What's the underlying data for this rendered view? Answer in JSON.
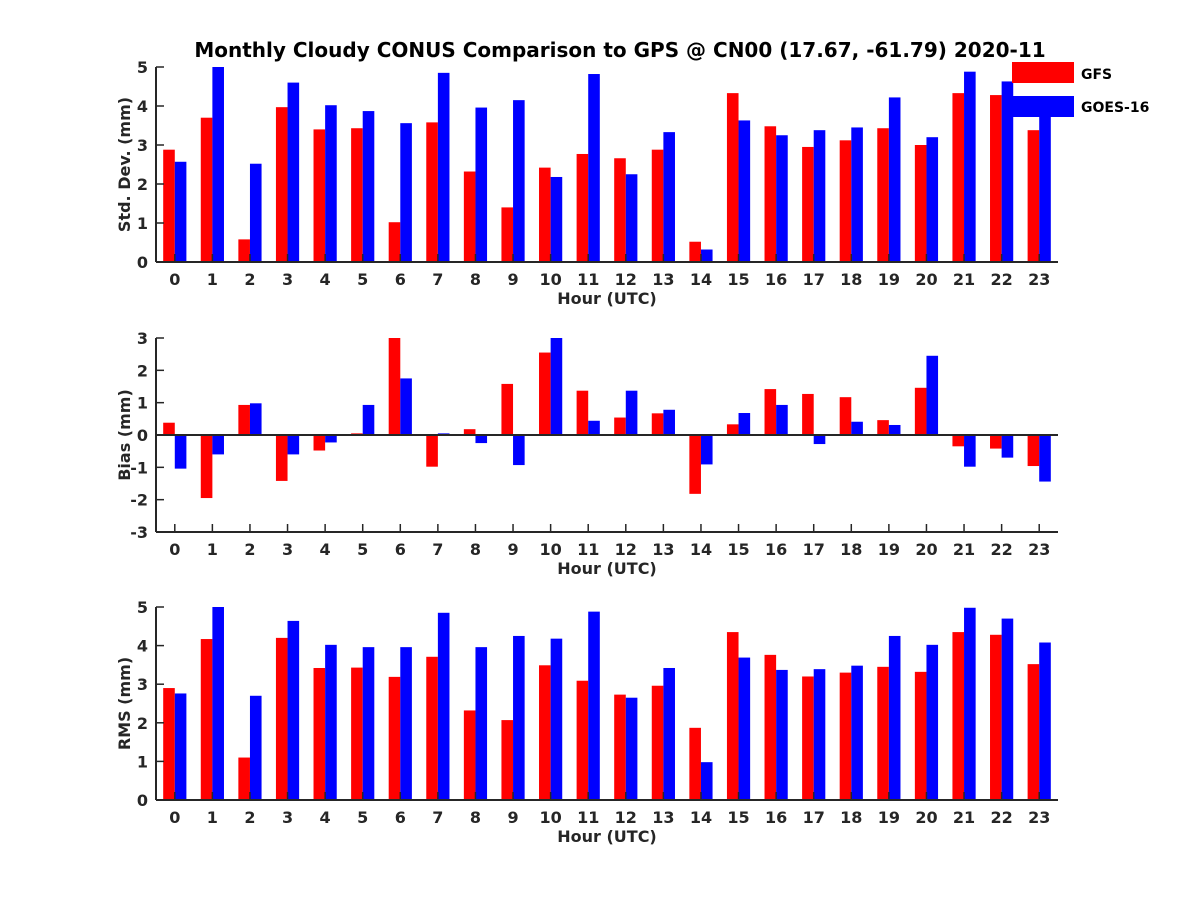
{
  "chart_data": {
    "type": "bar",
    "title": "Monthly Cloudy CONUS Comparison to GPS @ CN00 (17.67, -61.79) 2020-11",
    "categories": [
      "0",
      "1",
      "2",
      "3",
      "4",
      "5",
      "6",
      "7",
      "8",
      "9",
      "10",
      "11",
      "12",
      "13",
      "14",
      "15",
      "16",
      "17",
      "18",
      "19",
      "20",
      "21",
      "22",
      "23"
    ],
    "colors": {
      "GFS": "#ff0000",
      "GOES-16": "#0000ff"
    },
    "legend": {
      "position": "top-right",
      "entries": [
        "GFS",
        "GOES-16"
      ]
    },
    "panels": [
      {
        "ylabel": "Std. Dev. (mm)",
        "xlabel": "Hour (UTC)",
        "ylim": [
          0,
          5
        ],
        "yticks": [
          "0",
          "1",
          "2",
          "3",
          "4",
          "5"
        ],
        "series": [
          {
            "name": "GFS",
            "values": [
              2.88,
              3.7,
              0.58,
              3.97,
              3.4,
              3.43,
              1.02,
              3.58,
              2.32,
              1.4,
              2.42,
              2.77,
              2.66,
              2.88,
              0.52,
              4.33,
              3.48,
              2.95,
              3.12,
              3.43,
              3.0,
              4.33,
              4.28,
              3.38
            ]
          },
          {
            "name": "GOES-16",
            "values": [
              2.57,
              5.0,
              2.52,
              4.6,
              4.02,
              3.87,
              3.56,
              4.85,
              3.96,
              4.15,
              2.18,
              4.82,
              2.25,
              3.33,
              0.32,
              3.63,
              3.25,
              3.38,
              3.45,
              4.22,
              3.2,
              4.88,
              4.63,
              3.85
            ]
          }
        ]
      },
      {
        "ylabel": "Bias (mm)",
        "xlabel": "Hour (UTC)",
        "ylim": [
          -3,
          3
        ],
        "yticks": [
          "-3",
          "-2",
          "-1",
          "0",
          "1",
          "2",
          "3"
        ],
        "series": [
          {
            "name": "GFS",
            "values": [
              0.38,
              -1.95,
              0.93,
              -1.42,
              -0.48,
              0.05,
              3.0,
              -0.98,
              0.18,
              1.58,
              2.55,
              1.37,
              0.54,
              0.67,
              -1.82,
              0.33,
              1.42,
              1.27,
              1.17,
              0.46,
              1.46,
              -0.35,
              -0.42,
              -0.96
            ]
          },
          {
            "name": "GOES-16",
            "values": [
              -1.04,
              -0.6,
              0.98,
              -0.6,
              -0.23,
              0.93,
              1.75,
              0.05,
              -0.25,
              -0.93,
              3.0,
              0.44,
              1.37,
              0.78,
              -0.91,
              0.68,
              0.93,
              -0.28,
              0.41,
              0.31,
              2.45,
              -0.98,
              -0.7,
              -1.44
            ]
          }
        ]
      },
      {
        "ylabel": "RMS (mm)",
        "xlabel": "Hour (UTC)",
        "ylim": [
          0,
          5
        ],
        "yticks": [
          "0",
          "1",
          "2",
          "3",
          "4",
          "5"
        ],
        "series": [
          {
            "name": "GFS",
            "values": [
              2.9,
              4.17,
              1.1,
              4.2,
              3.42,
              3.43,
              3.19,
              3.71,
              2.32,
              2.07,
              3.49,
              3.09,
              2.73,
              2.96,
              1.87,
              4.35,
              3.76,
              3.2,
              3.3,
              3.45,
              3.32,
              4.35,
              4.28,
              3.52
            ]
          },
          {
            "name": "GOES-16",
            "values": [
              2.76,
              5.0,
              2.7,
              4.64,
              4.02,
              3.96,
              3.96,
              4.85,
              3.96,
              4.25,
              4.18,
              4.88,
              2.65,
              3.42,
              0.98,
              3.69,
              3.37,
              3.39,
              3.48,
              4.25,
              4.02,
              4.98,
              4.7,
              4.08
            ]
          }
        ]
      }
    ]
  }
}
